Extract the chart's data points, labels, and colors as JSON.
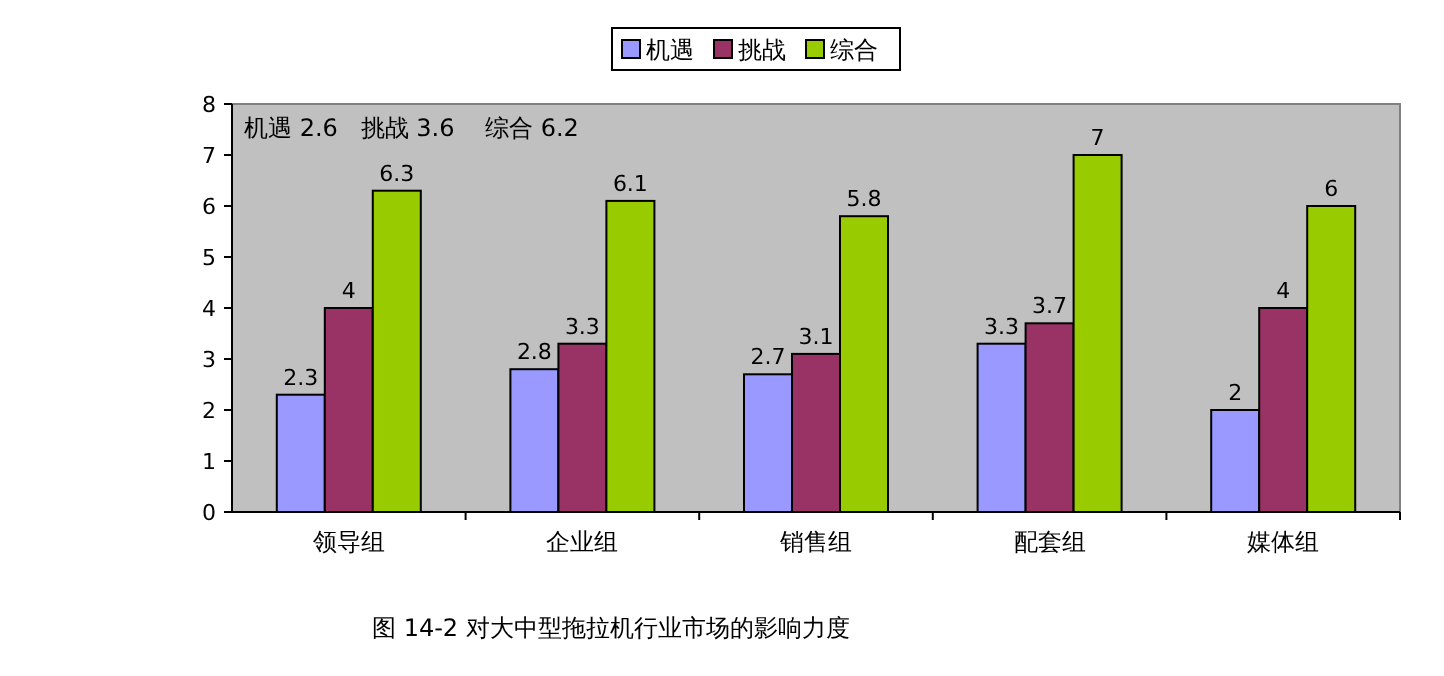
{
  "chart_data": {
    "type": "bar",
    "title": "图 14-2 对大中型拖拉机行业市场的影响力度",
    "categories": [
      "领导组",
      "企业组",
      "销售组",
      "配套组",
      "媒体组"
    ],
    "series": [
      {
        "name": "机遇",
        "color": "#9999ff",
        "values": [
          2.3,
          2.8,
          2.7,
          3.3,
          2
        ]
      },
      {
        "name": "挑战",
        "color": "#993366",
        "values": [
          4,
          3.3,
          3.1,
          3.7,
          4
        ]
      },
      {
        "name": "综合",
        "color": "#99cc00",
        "values": [
          6.3,
          6.1,
          5.8,
          7,
          6
        ]
      }
    ],
    "ylim": [
      0,
      8
    ],
    "yticks": [
      0,
      1,
      2,
      3,
      4,
      5,
      6,
      7,
      8
    ],
    "data_labels": true,
    "legend": "top",
    "annotations": [
      "机遇 2.6   挑战 3.6    综合 6.2"
    ]
  }
}
